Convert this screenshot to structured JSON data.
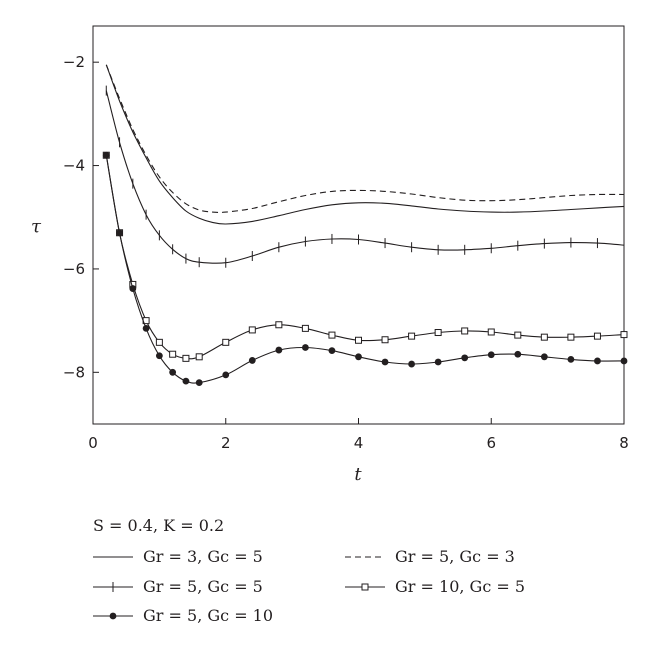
{
  "chart_data": {
    "type": "line",
    "xlabel": "t",
    "ylabel": "τ",
    "xlim": [
      0,
      8
    ],
    "ylim": [
      -9,
      -1.3
    ],
    "x_ticks": [
      0,
      2,
      4,
      6,
      8
    ],
    "y_ticks": [
      -2,
      -4,
      -6,
      -8
    ],
    "x_tick_labels": [
      "0",
      "2",
      "4",
      "6",
      "8"
    ],
    "y_tick_labels": [
      "−2",
      "−4",
      "−6",
      "−8"
    ],
    "grid": false,
    "legend_placement": "below plot",
    "legend_title": "S = 0.4, K = 0.2",
    "series": [
      {
        "name": "Gr = 3, Gc = 5",
        "style": "solid",
        "marker": "none",
        "x": [
          0.2,
          0.4,
          0.6,
          0.8,
          1.0,
          1.2,
          1.4,
          1.6,
          1.8,
          2.0,
          2.4,
          2.8,
          3.2,
          3.6,
          4.0,
          4.4,
          4.8,
          5.2,
          5.6,
          6.0,
          6.4,
          6.8,
          7.2,
          7.6,
          8.0
        ],
        "y": [
          -2.05,
          -2.75,
          -3.35,
          -3.85,
          -4.3,
          -4.62,
          -4.88,
          -5.02,
          -5.1,
          -5.13,
          -5.08,
          -4.97,
          -4.85,
          -4.76,
          -4.72,
          -4.73,
          -4.78,
          -4.84,
          -4.88,
          -4.9,
          -4.9,
          -4.88,
          -4.85,
          -4.82,
          -4.79
        ]
      },
      {
        "name": "Gr = 5, Gc = 3",
        "style": "dashed",
        "marker": "none",
        "x": [
          0.2,
          0.4,
          0.6,
          0.8,
          1.0,
          1.2,
          1.4,
          1.6,
          1.8,
          2.0,
          2.4,
          2.8,
          3.2,
          3.6,
          4.0,
          4.4,
          4.8,
          5.2,
          5.6,
          6.0,
          6.4,
          6.8,
          7.2,
          7.6,
          8.0
        ],
        "y": [
          -2.05,
          -2.7,
          -3.3,
          -3.8,
          -4.22,
          -4.52,
          -4.74,
          -4.86,
          -4.9,
          -4.9,
          -4.83,
          -4.7,
          -4.58,
          -4.5,
          -4.48,
          -4.5,
          -4.55,
          -4.62,
          -4.67,
          -4.68,
          -4.66,
          -4.62,
          -4.58,
          -4.56,
          -4.56
        ]
      },
      {
        "name": "Gr = 5, Gc = 5",
        "style": "solid",
        "marker": "plus",
        "x": [
          0.2,
          0.4,
          0.6,
          0.8,
          1.0,
          1.2,
          1.4,
          1.6,
          2.0,
          2.4,
          2.8,
          3.2,
          3.6,
          4.0,
          4.4,
          4.8,
          5.2,
          5.6,
          6.0,
          6.4,
          6.8,
          7.2,
          7.6,
          8.0
        ],
        "y": [
          -2.55,
          -3.55,
          -4.35,
          -4.95,
          -5.35,
          -5.62,
          -5.8,
          -5.87,
          -5.88,
          -5.75,
          -5.58,
          -5.47,
          -5.42,
          -5.43,
          -5.5,
          -5.58,
          -5.63,
          -5.63,
          -5.6,
          -5.55,
          -5.51,
          -5.49,
          -5.5,
          -5.54
        ]
      },
      {
        "name": "Gr = 10, Gc = 5",
        "style": "solid",
        "marker": "square",
        "x": [
          0.2,
          0.4,
          0.6,
          0.8,
          1.0,
          1.2,
          1.4,
          1.6,
          2.0,
          2.4,
          2.8,
          3.2,
          3.6,
          4.0,
          4.4,
          4.8,
          5.2,
          5.6,
          6.0,
          6.4,
          6.8,
          7.2,
          7.6,
          8.0
        ],
        "y": [
          -3.8,
          -5.3,
          -6.3,
          -7.0,
          -7.42,
          -7.65,
          -7.73,
          -7.7,
          -7.42,
          -7.18,
          -7.08,
          -7.15,
          -7.28,
          -7.38,
          -7.37,
          -7.3,
          -7.23,
          -7.2,
          -7.22,
          -7.28,
          -7.32,
          -7.32,
          -7.3,
          -7.27
        ]
      },
      {
        "name": "Gr = 5, Gc = 10",
        "style": "solid",
        "marker": "dot",
        "x": [
          0.2,
          0.4,
          0.6,
          0.8,
          1.0,
          1.2,
          1.4,
          1.6,
          2.0,
          2.4,
          2.8,
          3.2,
          3.6,
          4.0,
          4.4,
          4.8,
          5.2,
          5.6,
          6.0,
          6.4,
          6.8,
          7.2,
          7.6,
          8.0
        ],
        "y": [
          -3.8,
          -5.3,
          -6.38,
          -7.15,
          -7.68,
          -8.0,
          -8.17,
          -8.2,
          -8.05,
          -7.77,
          -7.57,
          -7.52,
          -7.58,
          -7.7,
          -7.8,
          -7.84,
          -7.8,
          -7.72,
          -7.66,
          -7.65,
          -7.7,
          -7.75,
          -7.78,
          -7.78
        ]
      }
    ]
  }
}
